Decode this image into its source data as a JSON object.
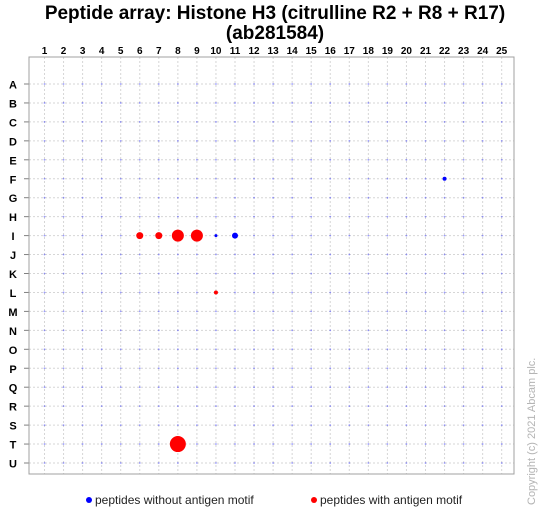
{
  "chart_data": {
    "type": "scatter",
    "title": "Peptide array:  Histone H3 (citrulline R2 + R8 + R17)(ab281584)",
    "columns": [
      "1",
      "2",
      "3",
      "4",
      "5",
      "6",
      "7",
      "8",
      "9",
      "10",
      "11",
      "12",
      "13",
      "14",
      "15",
      "16",
      "17",
      "18",
      "19",
      "20",
      "21",
      "22",
      "23",
      "24",
      "25"
    ],
    "rows": [
      "A",
      "B",
      "C",
      "D",
      "E",
      "F",
      "G",
      "H",
      "I",
      "J",
      "K",
      "L",
      "M",
      "N",
      "O",
      "P",
      "Q",
      "R",
      "S",
      "T",
      "U"
    ],
    "grid": true,
    "series": [
      {
        "name": "peptides without antigen motif",
        "color": "#0000ff",
        "points": [
          {
            "row": "F",
            "col": 22,
            "size": 2
          },
          {
            "row": "I",
            "col": 10,
            "size": 1.5
          },
          {
            "row": "I",
            "col": 11,
            "size": 3
          }
        ]
      },
      {
        "name": "peptides with antigen motif",
        "color": "#ff0000",
        "points": [
          {
            "row": "I",
            "col": 6,
            "size": 3.5
          },
          {
            "row": "I",
            "col": 7,
            "size": 3.5
          },
          {
            "row": "I",
            "col": 8,
            "size": 6
          },
          {
            "row": "I",
            "col": 9,
            "size": 6
          },
          {
            "row": "L",
            "col": 10,
            "size": 2
          },
          {
            "row": "T",
            "col": 8,
            "size": 8
          }
        ]
      }
    ],
    "background_dot_color": "#4d4dff",
    "legend_position": "bottom"
  },
  "copyright": "Copyright (c) 2021 Abcam plc."
}
